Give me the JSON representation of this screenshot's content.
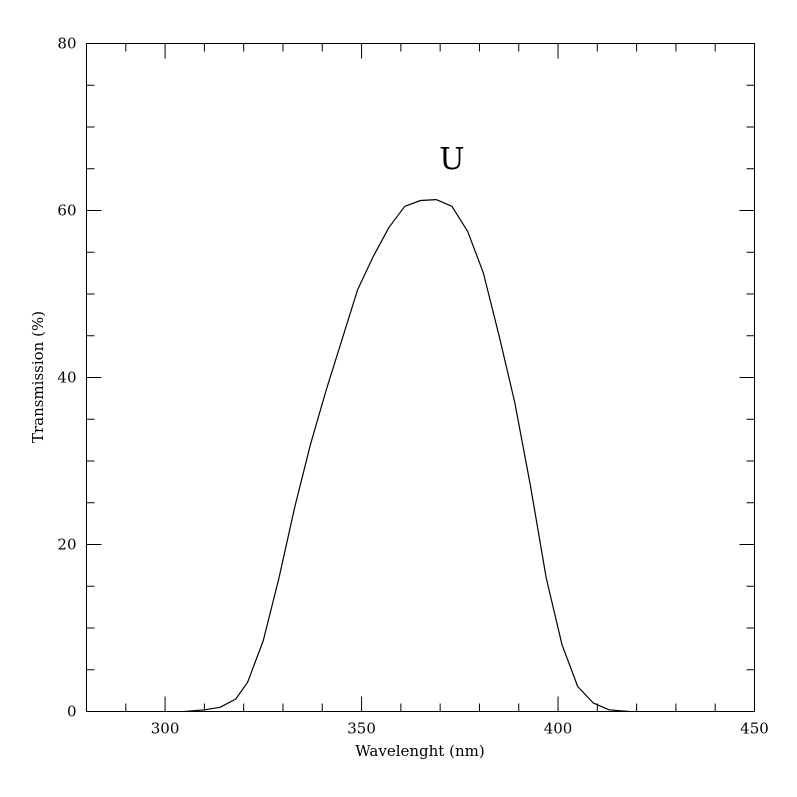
{
  "chart_data": {
    "type": "line",
    "title": "",
    "xlabel": "Wavelenght (nm)",
    "ylabel": "Transmission (%)",
    "xlim": [
      280,
      450
    ],
    "ylim": [
      0,
      80
    ],
    "x_major_ticks": [
      300,
      350,
      400,
      450
    ],
    "x_minor_step": 10,
    "y_major_ticks": [
      0,
      20,
      40,
      60,
      80
    ],
    "y_minor_step": 5,
    "grid": false,
    "annotation": {
      "text": "U",
      "x": 373,
      "y": 65
    },
    "series": [
      {
        "x": [
          305,
          310,
          314,
          318,
          321,
          325,
          329,
          333,
          337,
          341,
          345,
          349,
          353,
          357,
          361,
          365,
          369,
          373,
          377,
          381,
          385,
          389,
          393,
          397,
          401,
          405,
          409,
          413,
          418
        ],
        "y": [
          0,
          0.2,
          0.5,
          1.5,
          3.5,
          8.5,
          16,
          24.5,
          32,
          38.5,
          44.5,
          50.5,
          54.5,
          58,
          60.5,
          61.2,
          61.3,
          60.5,
          57.5,
          52.5,
          45,
          37,
          27,
          16,
          8,
          3,
          1,
          0.2,
          0
        ]
      }
    ]
  }
}
